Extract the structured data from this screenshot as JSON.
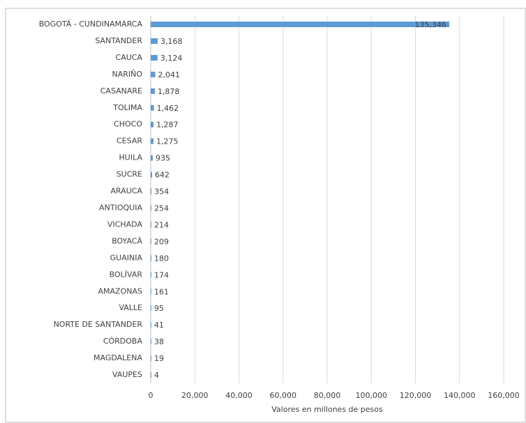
{
  "chart_data": {
    "type": "bar",
    "orientation": "horizontal",
    "x_label": "Valores en millones de pesos",
    "categories": [
      "BOGOTÁ - CUNDINAMARCA",
      "SANTANDER",
      "CAUCA",
      "NARIÑO",
      "CASANARE",
      "TOLIMA",
      "CHOCO",
      "CESAR",
      "HUILA",
      "SUCRE",
      "ARAUCA",
      "ANTIOQUIA",
      "VICHADA",
      "BOYACÁ",
      "GUAINIA",
      "BOLÍVAR",
      "AMAZONAS",
      "VALLE",
      "NORTE DE SANTANDER",
      "CÓRDOBA",
      "MAGDALENA",
      "VAUPES"
    ],
    "values": [
      135346,
      3168,
      3124,
      2041,
      1878,
      1462,
      1287,
      1275,
      935,
      642,
      354,
      254,
      214,
      209,
      180,
      174,
      161,
      95,
      41,
      38,
      19,
      4
    ],
    "value_labels": [
      "135,346",
      "3,168",
      "3,124",
      "2,041",
      "1,878",
      "1,462",
      "1,287",
      "1,275",
      "935",
      "642",
      "354",
      "254",
      "214",
      "209",
      "180",
      "174",
      "161",
      "95",
      "41",
      "38",
      "19",
      "4"
    ],
    "color": "#5b9bd5",
    "xlim": [
      0,
      160000
    ],
    "xticks": [
      0,
      {
        "value": 20000,
        "label": "20,000"
      },
      {
        "value": 40000,
        "label": "40,000"
      },
      {
        "value": 60000,
        "label": "60,000"
      },
      {
        "value": 80000,
        "label": "80,000"
      },
      {
        "value": 100000,
        "label": "100,000"
      },
      {
        "value": 120000,
        "label": "120,000"
      },
      {
        "value": 140000,
        "label": "140,000"
      },
      {
        "value": 160000,
        "label": "160,000"
      }
    ],
    "grid": true
  }
}
